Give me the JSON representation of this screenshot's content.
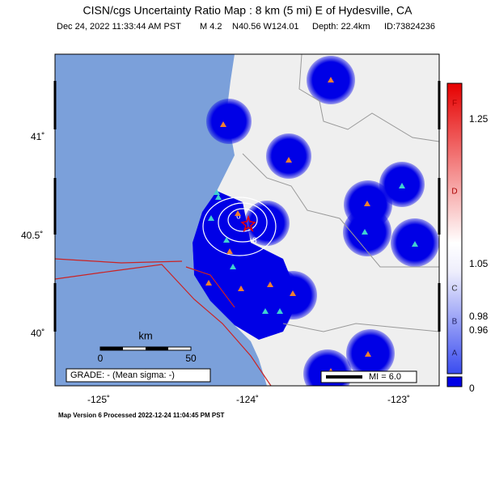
{
  "header": {
    "title": "CISN/cgs Uncertainty Ratio Map : 8 km (5 mi) E of Hydesville, CA",
    "date": "Dec 24, 2022 11:33:44 AM PST",
    "magnitude": "M 4.2",
    "location": "N40.56 W124.01",
    "depth": "Depth: 22.4km",
    "id": "ID:73824236"
  },
  "axes": {
    "lat_labels": [
      "41˚",
      "40.5˚",
      "40˚"
    ],
    "lon_labels": [
      "-125˚",
      "-124˚",
      "-123˚"
    ]
  },
  "scale_bar": {
    "unit": "km",
    "start": "0",
    "end": "50"
  },
  "grade": "GRADE: - (Mean sigma: -)",
  "mi_legend": "MI = 6.0",
  "contour_labels": [
    "6",
    "8"
  ],
  "colorbar": {
    "grades": [
      "F",
      "D",
      "C",
      "B",
      "A"
    ],
    "tick_labels": [
      "1.25",
      "1.05",
      "0.98",
      "0.96",
      "0"
    ]
  },
  "footer": "Map Version 6 Processed 2022-12-24 11:04:45 PM PST"
}
